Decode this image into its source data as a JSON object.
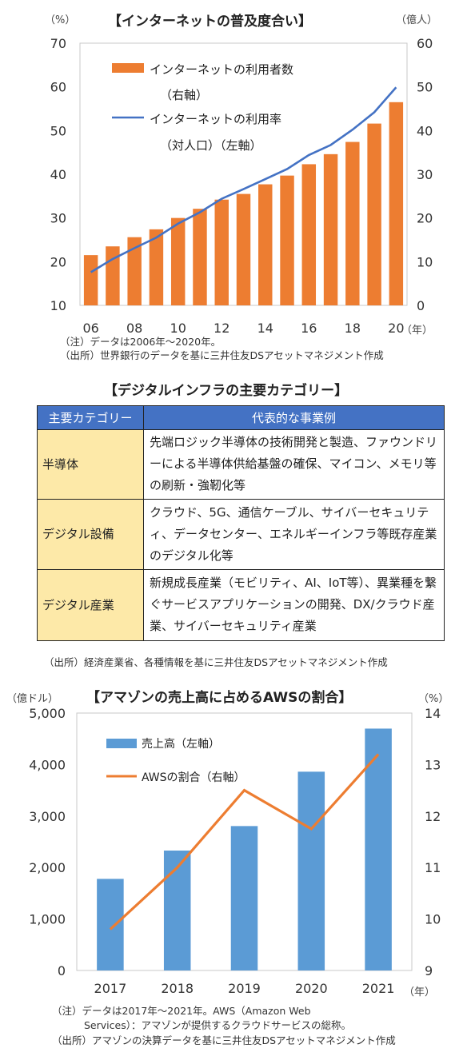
{
  "chart1": {
    "title": "【インターネットの普及度合い】",
    "left_unit": "（%）",
    "right_unit": "（億人）",
    "x_unit": "（年）",
    "legend": {
      "bar_label_1": "インターネットの利用者数",
      "bar_label_2": "（右軸）",
      "line_label_1": "インターネットの利用率",
      "line_label_2": "（対人口）（左軸）"
    },
    "notes": [
      "（注）データは2006年～2020年。",
      "（出所）世界銀行のデータを基に三井住友DSアセットマネジメント作成"
    ]
  },
  "table": {
    "title": "【デジタルインフラの主要カテゴリー】",
    "headers": [
      "主要カテゴリー",
      "代表的な事業例"
    ],
    "rows": [
      {
        "category": "半導体",
        "examples": "先端ロジック半導体の技術開発と製造、ファウンドリーによる半導体供給基盤の確保、マイコン、メモリ等の刷新・強靭化等"
      },
      {
        "category": "デジタル設備",
        "examples": "クラウド、5G、通信ケーブル、サイバーセキュリティ、データセンター、エネルギーインフラ等既存産業のデジタル化等"
      },
      {
        "category": "デジタル産業",
        "examples": "新規成長産業（モビリティ、AI、IoT等）、異業種を繋ぐサービスアプリケーションの開発、DX/クラウド産業、サイバーセキュリティ産業"
      }
    ],
    "note": "（出所）経済産業省、各種情報を基に三井住友DSアセットマネジメント作成"
  },
  "chart2": {
    "title": "【アマゾンの売上高に占めるAWSの割合】",
    "left_unit": "（億ドル）",
    "right_unit": "（%）",
    "x_unit": "（年）",
    "legend": {
      "bar_label": "売上高（左軸）",
      "line_label": "AWSの割合（右軸）"
    },
    "notes": [
      "（注）データは2017年～2021年。AWS（Amazon Web",
      "Services）：アマゾンが提供するクラウドサービスの総称。",
      "（出所）アマゾンの決算データを基に三井住友DSアセットマネジメント作成"
    ]
  },
  "chart_data": [
    {
      "type": "bar",
      "title": "【インターネットの普及度合い】",
      "categories": [
        "06",
        "07",
        "08",
        "09",
        "10",
        "11",
        "12",
        "13",
        "14",
        "15",
        "16",
        "17",
        "18",
        "19",
        "20"
      ],
      "x_tick_labels": [
        "06",
        "08",
        "10",
        "12",
        "14",
        "16",
        "18",
        "20"
      ],
      "series": [
        {
          "name": "インターネットの利用者数（右軸）",
          "type": "bar",
          "axis": "right",
          "color": "#ed7d31",
          "values": [
            11.5,
            13.5,
            15.6,
            17.4,
            20.0,
            22.1,
            24.2,
            25.5,
            27.7,
            29.7,
            32.3,
            34.6,
            37.4,
            41.6,
            46.5
          ]
        },
        {
          "name": "インターネットの利用率（対人口）（左軸）",
          "type": "line",
          "axis": "left",
          "color": "#4472c4",
          "values": [
            17.6,
            20.6,
            23.1,
            25.5,
            28.7,
            31.3,
            34.4,
            36.6,
            38.9,
            41.2,
            44.4,
            46.7,
            50.2,
            54.2,
            59.9
          ]
        }
      ],
      "y_left": {
        "ylim": [
          10,
          70
        ],
        "ticks": [
          10,
          20,
          30,
          40,
          50,
          60,
          70
        ]
      },
      "y_right": {
        "ylim": [
          0,
          60
        ],
        "ticks": [
          0,
          10,
          20,
          30,
          40,
          50,
          60
        ]
      },
      "grid": false,
      "legend_position": "top-left"
    },
    {
      "type": "bar",
      "title": "【アマゾンの売上高に占めるAWSの割合】",
      "categories": [
        "2017",
        "2018",
        "2019",
        "2020",
        "2021"
      ],
      "series": [
        {
          "name": "売上高（左軸）",
          "type": "bar",
          "axis": "left",
          "color": "#5b9bd5",
          "values": [
            1779,
            2329,
            2805,
            3861,
            4698
          ]
        },
        {
          "name": "AWSの割合（右軸）",
          "type": "line",
          "axis": "right",
          "color": "#ed7d31",
          "values": [
            9.8,
            11.0,
            12.5,
            11.75,
            13.2
          ]
        }
      ],
      "y_left": {
        "ylim": [
          0,
          5000
        ],
        "ticks": [
          0,
          1000,
          2000,
          3000,
          4000,
          5000
        ],
        "tick_labels": [
          "0",
          "1,000",
          "2,000",
          "3,000",
          "4,000",
          "5,000"
        ]
      },
      "y_right": {
        "ylim": [
          9,
          14
        ],
        "ticks": [
          9,
          10,
          11,
          12,
          13,
          14
        ]
      },
      "grid": false,
      "legend_position": "top-left"
    }
  ]
}
